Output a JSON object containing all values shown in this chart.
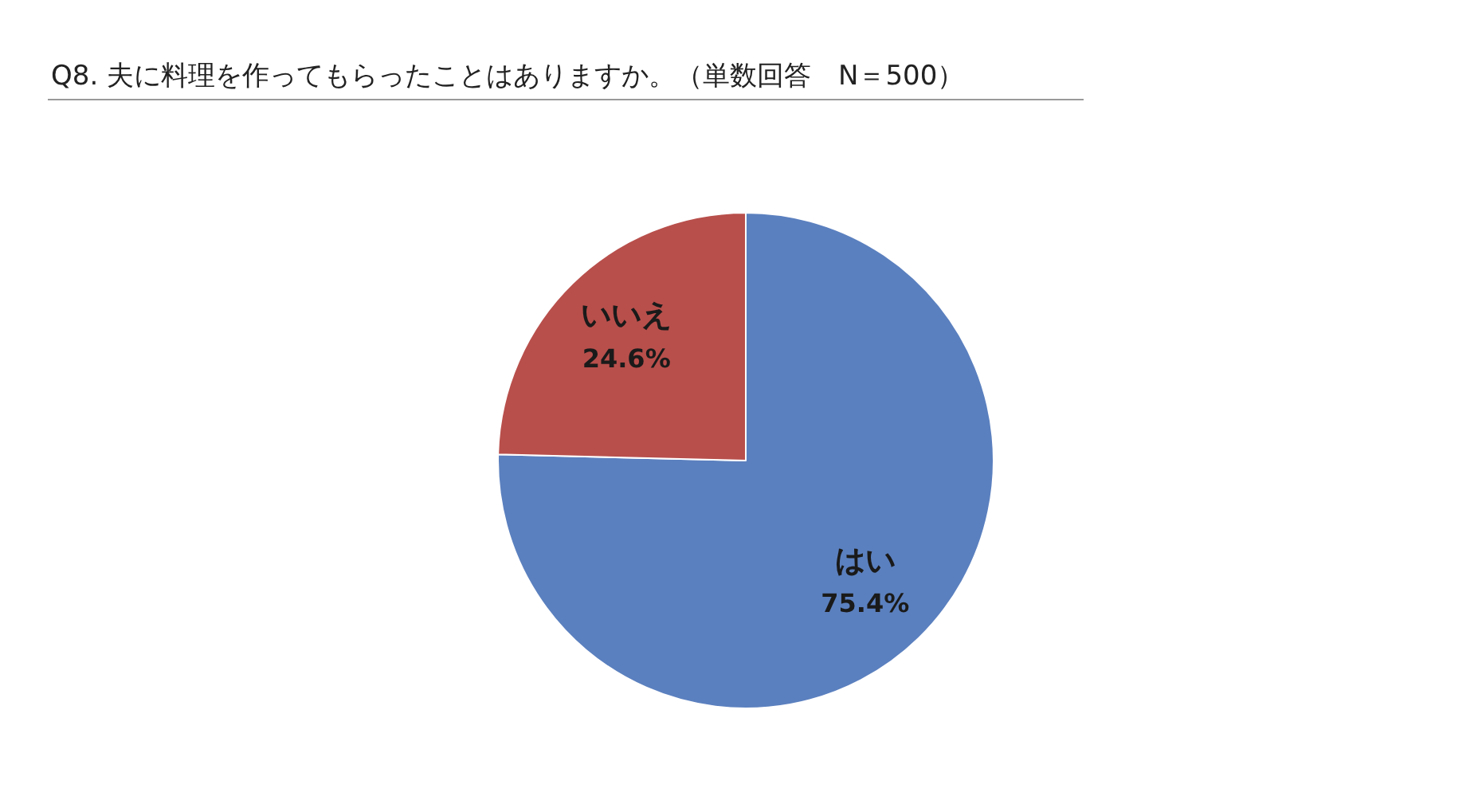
{
  "chart_data": {
    "type": "pie",
    "title": "Q8.  夫に料理を作ってもらったことはありますか。（単数回答　N＝500）",
    "categories": [
      "はい",
      "いいえ"
    ],
    "values": [
      75.4,
      24.6
    ],
    "colors": [
      "#5b80bf",
      "#b84f4b"
    ],
    "value_labels": [
      "75.4%",
      "24.6%"
    ],
    "legend": false
  }
}
